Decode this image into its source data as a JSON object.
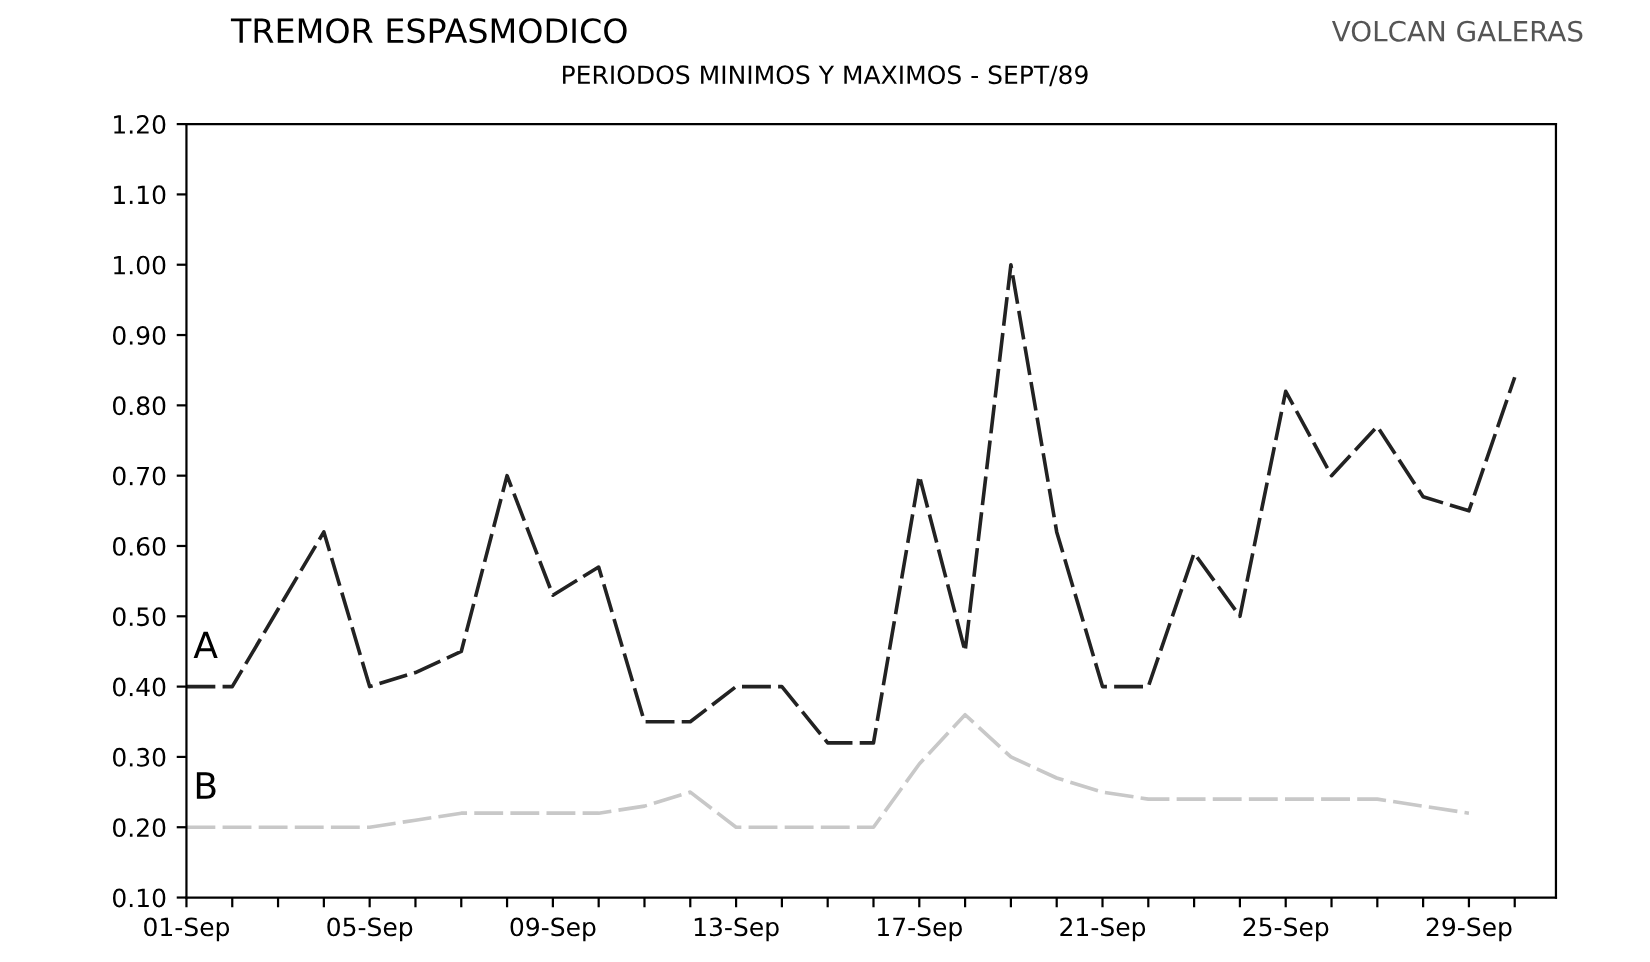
{
  "chart_data": {
    "type": "line",
    "title": "TREMOR ESPASMODICO",
    "subtitle": "PERIODOS MINIMOS Y MAXIMOS - SEPT/89",
    "annotations": [
      "VOLCAN GALERAS"
    ],
    "categories": [
      "01-Sep",
      null,
      null,
      null,
      "05-Sep",
      null,
      null,
      null,
      "09-Sep",
      null,
      null,
      null,
      "13-Sep",
      null,
      null,
      null,
      "17-Sep",
      null,
      null,
      null,
      "21-Sep",
      null,
      null,
      null,
      "25-Sep",
      null,
      null,
      null,
      "29-Sep",
      null
    ],
    "series": [
      {
        "name": "A",
        "color": "#222222",
        "values": [
          0.4,
          0.4,
          0.51,
          0.62,
          0.4,
          0.42,
          0.45,
          0.7,
          0.53,
          0.57,
          0.35,
          0.35,
          0.4,
          0.4,
          0.32,
          0.32,
          0.7,
          0.45,
          1.0,
          0.62,
          0.4,
          0.4,
          0.59,
          0.5,
          0.82,
          0.7,
          0.77,
          0.67,
          0.65,
          0.84
        ]
      },
      {
        "name": "B",
        "color": "#c8c8c8",
        "values": [
          0.2,
          0.2,
          0.2,
          0.2,
          0.2,
          0.21,
          0.22,
          0.22,
          0.22,
          0.22,
          0.23,
          0.25,
          0.2,
          0.2,
          0.2,
          0.2,
          0.29,
          0.36,
          0.3,
          0.27,
          0.25,
          0.24,
          0.24,
          0.24,
          0.24,
          0.24,
          0.24,
          0.23,
          0.22,
          null
        ]
      }
    ],
    "ylim": [
      0.1,
      1.2
    ],
    "yticks": [
      {
        "value": 0.1,
        "label": "0.10"
      },
      {
        "value": 0.2,
        "label": "0.20"
      },
      {
        "value": 0.3,
        "label": "0.30"
      },
      {
        "value": 0.4,
        "label": "0.40"
      },
      {
        "value": 0.5,
        "label": "0.50"
      },
      {
        "value": 0.6,
        "label": "0.60"
      },
      {
        "value": 0.7,
        "label": "0.70"
      },
      {
        "value": 0.8,
        "label": "0.80"
      },
      {
        "value": 0.9,
        "label": "0.90"
      },
      {
        "value": 1.0,
        "label": "1.00"
      },
      {
        "value": 1.1,
        "label": "1.10"
      },
      {
        "value": 1.2,
        "label": "1.20"
      }
    ],
    "grid": false,
    "legend": false,
    "line_style": "dashed"
  }
}
